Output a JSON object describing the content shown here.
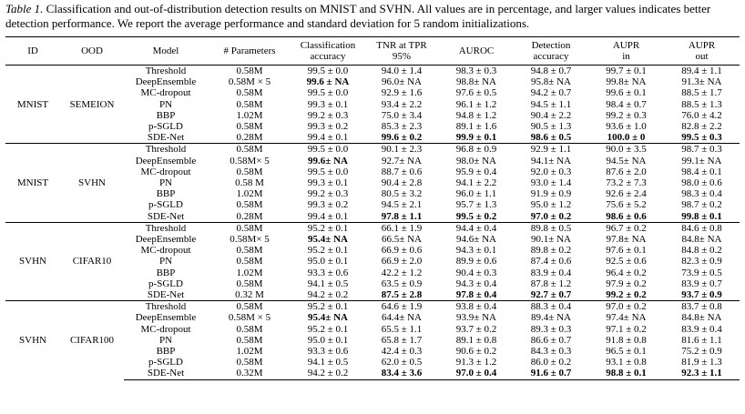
{
  "caption": {
    "label": "Table 1.",
    "text": " Classification and out-of-distribution detection results on MNIST and SVHN. All values are in percentage, and larger values indicates better detection performance. We report the average performance and standard deviation for 5 random initializations."
  },
  "headers": [
    "ID",
    "OOD",
    "Model",
    "# Parameters",
    "Classification accuracy",
    "TNR at TPR 95%",
    "AUROC",
    "Detection accuracy",
    "AUPR in",
    "AUPR out"
  ],
  "groups": [
    {
      "id": "MNIST",
      "ood": "SEMEION",
      "rows": [
        {
          "model": "Threshold",
          "params": "0.58M",
          "cls": "99.5 ± 0.0",
          "tnr": "94.0 ± 1.4",
          "auroc": "98.3 ± 0.3",
          "det": "94.8 ± 0.7",
          "aupr_in": "99.7 ± 0.1",
          "aupr_out": "89.4 ± 1.1",
          "bold": []
        },
        {
          "model": "DeepEnsemble",
          "params": "0.58M × 5",
          "cls": "99.6 ± NA",
          "tnr": "96.0± NA",
          "auroc": "98.8± NA",
          "det": "95.8± NA",
          "aupr_in": "99.8± NA",
          "aupr_out": "91.3± NA",
          "bold": [
            "cls"
          ]
        },
        {
          "model": "MC-dropout",
          "params": "0.58M",
          "cls": "99.5 ± 0.0",
          "tnr": "92.9 ± 1.6",
          "auroc": "97.6 ± 0.5",
          "det": "94.2 ± 0.7",
          "aupr_in": "99.6 ± 0.1",
          "aupr_out": "88.5 ± 1.7",
          "bold": []
        },
        {
          "model": "PN",
          "params": "0.58M",
          "cls": "99.3 ± 0.1",
          "tnr": "93.4 ± 2.2",
          "auroc": "96.1 ± 1.2",
          "det": "94.5 ± 1.1",
          "aupr_in": "98.4 ± 0.7",
          "aupr_out": "88.5 ± 1.3",
          "bold": []
        },
        {
          "model": "BBP",
          "params": "1.02M",
          "cls": "99.2 ± 0.3",
          "tnr": "75.0 ± 3.4",
          "auroc": "94.8 ± 1.2",
          "det": "90.4 ± 2.2",
          "aupr_in": "99.2 ± 0.3",
          "aupr_out": "76.0 ± 4.2",
          "bold": []
        },
        {
          "model": "p-SGLD",
          "params": "0.58M",
          "cls": "99.3 ± 0.2",
          "tnr": "85.3 ± 2.3",
          "auroc": "89.1 ± 1.6",
          "det": "90.5 ± 1.3",
          "aupr_in": "93.6 ± 1.0",
          "aupr_out": "82.8 ± 2.2",
          "bold": []
        },
        {
          "model": "SDE-Net",
          "params": "0.28M",
          "cls": "99.4 ± 0.1",
          "tnr": "99.6 ± 0.2",
          "auroc": "99.9 ± 0.1",
          "det": "98.6 ± 0.5",
          "aupr_in": "100.0 ± 0",
          "aupr_out": "99.5 ± 0.3",
          "bold": [
            "tnr",
            "auroc",
            "det",
            "aupr_in",
            "aupr_out"
          ]
        }
      ]
    },
    {
      "id": "MNIST",
      "ood": "SVHN",
      "rows": [
        {
          "model": "Threshold",
          "params": "0.58M",
          "cls": "99.5 ± 0.0",
          "tnr": "90.1 ± 2.3",
          "auroc": "96.8 ± 0.9",
          "det": "92.9 ± 1.1",
          "aupr_in": "90.0 ± 3.5",
          "aupr_out": "98.7 ± 0.3",
          "bold": []
        },
        {
          "model": "DeepEnsemble",
          "params": "0.58M× 5",
          "cls": "99.6± NA",
          "tnr": "92.7± NA",
          "auroc": "98.0± NA",
          "det": "94.1± NA",
          "aupr_in": "94.5± NA",
          "aupr_out": "99.1± NA",
          "bold": [
            "cls"
          ]
        },
        {
          "model": "MC-dropout",
          "params": "0.58M",
          "cls": "99.5 ± 0.0",
          "tnr": "88.7 ± 0.6",
          "auroc": "95.9 ± 0.4",
          "det": "92.0 ± 0.3",
          "aupr_in": "87.6 ± 2.0",
          "aupr_out": "98.4 ± 0.1",
          "bold": []
        },
        {
          "model": "PN",
          "params": "0.58 M",
          "cls": "99.3 ± 0.1",
          "tnr": "90.4 ± 2.8",
          "auroc": "94.1 ± 2.2",
          "det": "93.0 ± 1.4",
          "aupr_in": "73.2 ± 7.3",
          "aupr_out": "98.0 ± 0.6",
          "bold": []
        },
        {
          "model": "BBP",
          "params": "1.02M",
          "cls": "99.2 ± 0.3",
          "tnr": "80.5 ± 3.2",
          "auroc": "96.0 ± 1.1",
          "det": "91.9 ± 0.9",
          "aupr_in": "92.6 ± 2.4",
          "aupr_out": "98.3 ± 0.4",
          "bold": []
        },
        {
          "model": "p-SGLD",
          "params": "0.58M",
          "cls": "99.3 ± 0.2",
          "tnr": "94.5 ± 2.1",
          "auroc": "95.7 ± 1.3",
          "det": "95.0 ± 1.2",
          "aupr_in": "75.6 ± 5.2",
          "aupr_out": "98.7 ± 0.2",
          "bold": []
        },
        {
          "model": "SDE-Net",
          "params": "0.28M",
          "cls": "99.4 ± 0.1",
          "tnr": "97.8 ± 1.1",
          "auroc": "99.5 ± 0.2",
          "det": "97.0 ± 0.2",
          "aupr_in": "98.6 ± 0.6",
          "aupr_out": "99.8 ± 0.1",
          "bold": [
            "tnr",
            "auroc",
            "det",
            "aupr_in",
            "aupr_out"
          ]
        }
      ]
    },
    {
      "id": "SVHN",
      "ood": "CIFAR10",
      "rows": [
        {
          "model": "Threshold",
          "params": "0.58M",
          "cls": "95.2 ± 0.1",
          "tnr": "66.1 ± 1.9",
          "auroc": "94.4 ± 0.4",
          "det": "89.8 ± 0.5",
          "aupr_in": "96.7 ± 0.2",
          "aupr_out": "84.6 ± 0.8",
          "bold": []
        },
        {
          "model": "DeepEnsemble",
          "params": "0.58M× 5",
          "cls": "95.4± NA",
          "tnr": "66.5± NA",
          "auroc": "94.6± NA",
          "det": "90.1± NA",
          "aupr_in": "97.8± NA",
          "aupr_out": "84.8± NA",
          "bold": [
            "cls"
          ]
        },
        {
          "model": "MC-dropout",
          "params": "0.58M",
          "cls": "95.2 ± 0.1",
          "tnr": "66.9 ± 0.6",
          "auroc": "94.3 ± 0.1",
          "det": "89.8 ± 0.2",
          "aupr_in": "97.6 ± 0.1",
          "aupr_out": "84.8 ± 0.2",
          "bold": []
        },
        {
          "model": "PN",
          "params": "0.58M",
          "cls": "95.0 ± 0.1",
          "tnr": "66.9 ± 2.0",
          "auroc": "89.9 ± 0.6",
          "det": "87.4 ± 0.6",
          "aupr_in": "92.5 ± 0.6",
          "aupr_out": "82.3 ± 0.9",
          "bold": []
        },
        {
          "model": "BBP",
          "params": "1.02M",
          "cls": "93.3 ± 0.6",
          "tnr": "42.2 ± 1.2",
          "auroc": "90.4 ± 0.3",
          "det": "83.9 ± 0.4",
          "aupr_in": "96.4 ± 0.2",
          "aupr_out": "73.9 ± 0.5",
          "bold": []
        },
        {
          "model": "p-SGLD",
          "params": "0.58M",
          "cls": "94.1 ± 0.5",
          "tnr": "63.5 ± 0.9",
          "auroc": "94.3 ± 0.4",
          "det": "87.8 ± 1.2",
          "aupr_in": "97.9 ± 0.2",
          "aupr_out": "83.9 ± 0.7",
          "bold": []
        },
        {
          "model": "SDE-Net",
          "params": "0.32 M",
          "cls": "94.2 ± 0.2",
          "tnr": "87.5 ± 2.8",
          "auroc": "97.8 ± 0.4",
          "det": "92.7 ± 0.7",
          "aupr_in": "99.2 ± 0.2",
          "aupr_out": "93.7 ± 0.9",
          "bold": [
            "tnr",
            "auroc",
            "det",
            "aupr_in",
            "aupr_out"
          ]
        }
      ]
    },
    {
      "id": "SVHN",
      "ood": "CIFAR100",
      "rows": [
        {
          "model": "Threshold",
          "params": "0.58M",
          "cls": "95.2 ± 0.1",
          "tnr": "64.6 ± 1.9",
          "auroc": "93.8 ± 0.4",
          "det": "88.3 ± 0.4",
          "aupr_in": "97.0 ± 0.2",
          "aupr_out": "83.7 ± 0.8",
          "bold": []
        },
        {
          "model": "DeepEnsemble",
          "params": "0.58M × 5",
          "cls": "95.4± NA",
          "tnr": "64.4± NA",
          "auroc": "93.9± NA",
          "det": "89.4± NA",
          "aupr_in": "97.4± NA",
          "aupr_out": "84.8± NA",
          "bold": [
            "cls"
          ]
        },
        {
          "model": "MC-dropout",
          "params": "0.58M",
          "cls": "95.2 ± 0.1",
          "tnr": "65.5 ± 1.1",
          "auroc": "93.7 ± 0.2",
          "det": "89.3 ± 0.3",
          "aupr_in": "97.1 ± 0.2",
          "aupr_out": "83.9 ± 0.4",
          "bold": []
        },
        {
          "model": "PN",
          "params": "0.58M",
          "cls": "95.0 ± 0.1",
          "tnr": "65.8 ± 1.7",
          "auroc": "89.1 ± 0.8",
          "det": "86.6 ± 0.7",
          "aupr_in": "91.8 ± 0.8",
          "aupr_out": "81.6 ± 1.1",
          "bold": []
        },
        {
          "model": "BBP",
          "params": "1.02M",
          "cls": "93.3 ± 0.6",
          "tnr": "42.4 ± 0.3",
          "auroc": "90.6 ± 0.2",
          "det": "84.3 ± 0.3",
          "aupr_in": "96.5 ± 0.1",
          "aupr_out": "75.2 ± 0.9",
          "bold": []
        },
        {
          "model": "p-SGLD",
          "params": "0.58M",
          "cls": "94.1 ± 0.5",
          "tnr": "62.0 ± 0.5",
          "auroc": "91.3 ± 1.2",
          "det": "86.0 ± 0.2",
          "aupr_in": "93.1 ± 0.8",
          "aupr_out": "81.9 ± 1.3",
          "bold": []
        },
        {
          "model": "SDE-Net",
          "params": "0.32M",
          "cls": "94.2 ± 0.2",
          "tnr": "83.4 ± 3.6",
          "auroc": "97.0 ± 0.4",
          "det": "91.6 ± 0.7",
          "aupr_in": "98.8 ± 0.1",
          "aupr_out": "92.3 ± 1.1",
          "bold": [
            "tnr",
            "auroc",
            "det",
            "aupr_in",
            "aupr_out"
          ]
        }
      ]
    }
  ]
}
